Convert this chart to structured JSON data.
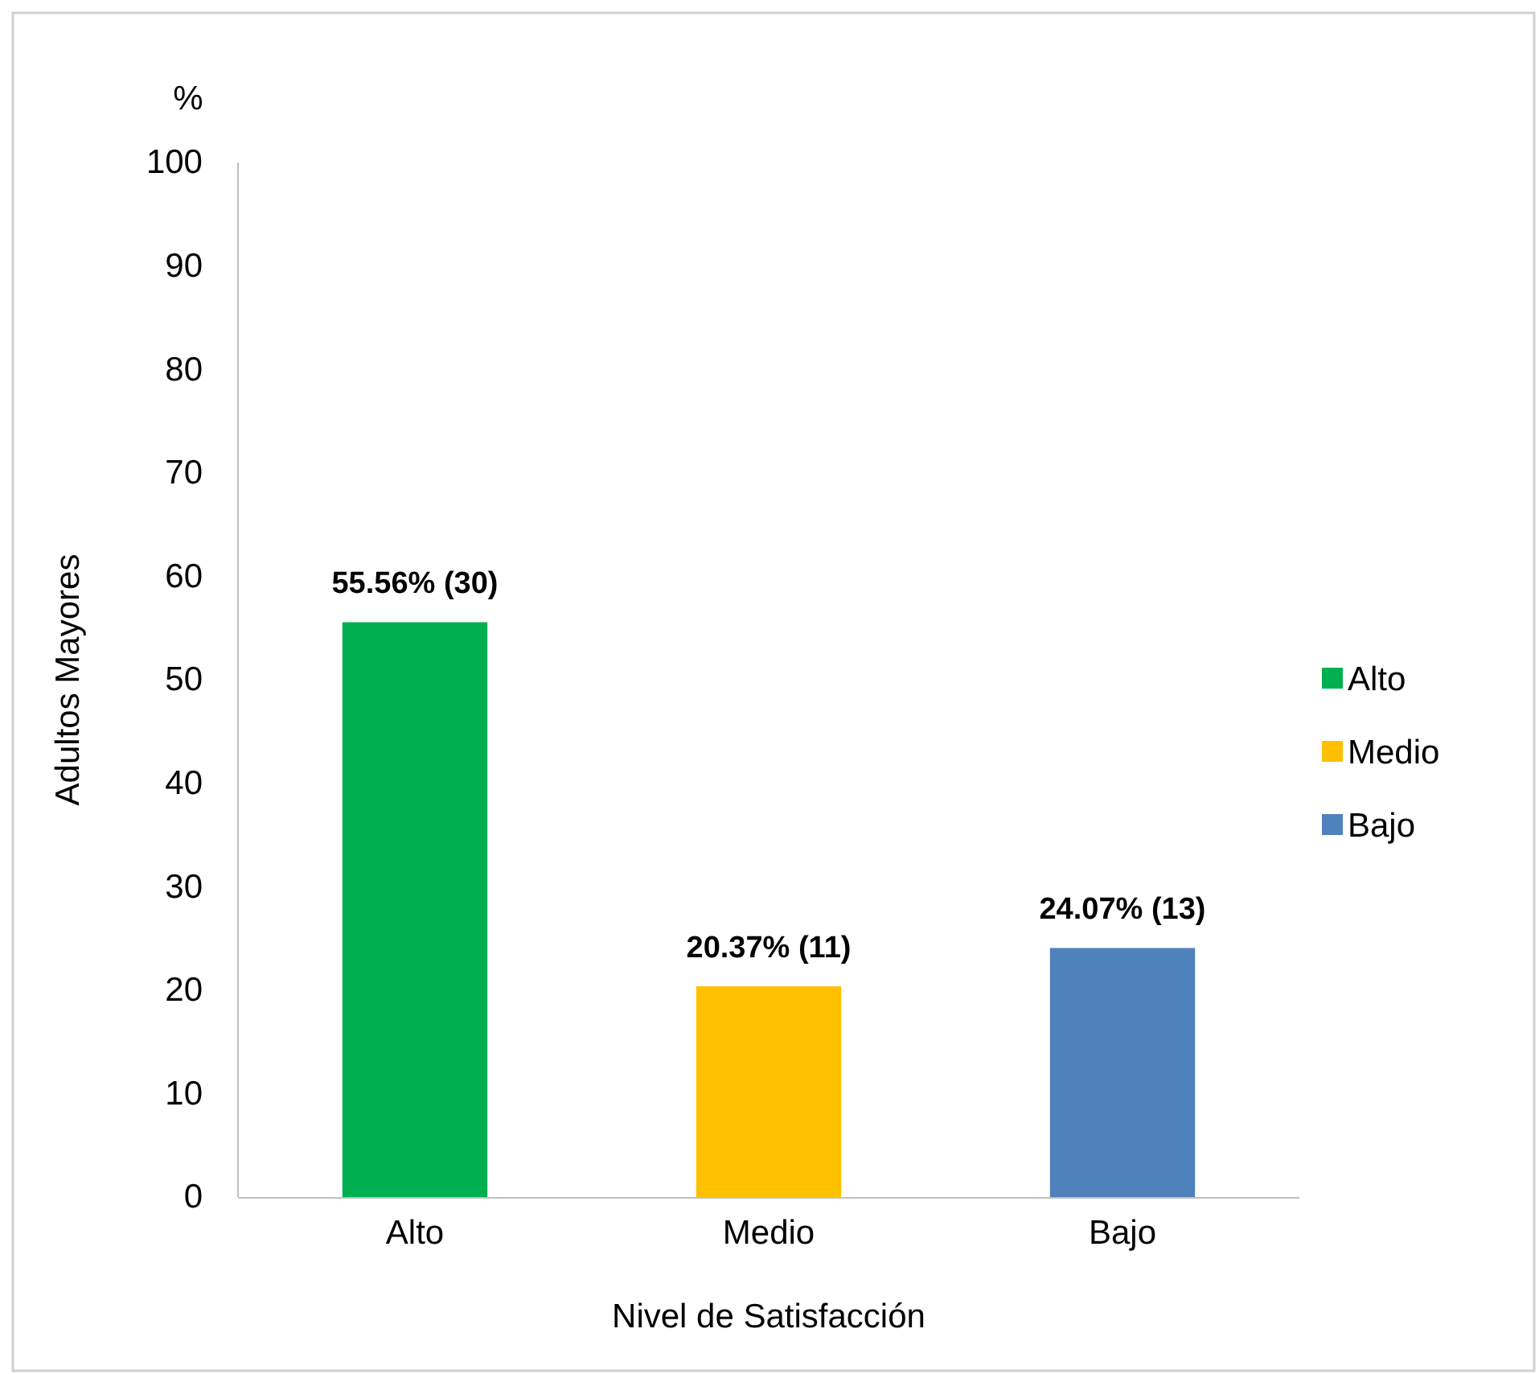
{
  "chart_data": {
    "type": "bar",
    "xlabel": "Nivel de Satisfacción",
    "ylabel": "Adultos Mayores",
    "annotations": [
      "%"
    ],
    "categories": [
      "Alto",
      "Medio",
      "Bajo"
    ],
    "series": [
      {
        "name": "Alto",
        "color": "#00b050",
        "values": [
          55.56,
          null,
          null
        ],
        "value_labels": [
          "55.56% (30)",
          null,
          null
        ]
      },
      {
        "name": "Medio",
        "color": "#ffc000",
        "values": [
          null,
          20.37,
          null
        ],
        "value_labels": [
          null,
          "20.37% (11)",
          null
        ]
      },
      {
        "name": "Bajo",
        "color": "#4f81bd",
        "values": [
          null,
          null,
          24.07
        ],
        "value_labels": [
          null,
          null,
          "24.07% (13)"
        ]
      }
    ],
    "ylim": [
      0,
      100
    ],
    "yticks": [
      0,
      10,
      20,
      30,
      40,
      50,
      60,
      70,
      80,
      90,
      100
    ],
    "grid": false,
    "legend": "right"
  }
}
